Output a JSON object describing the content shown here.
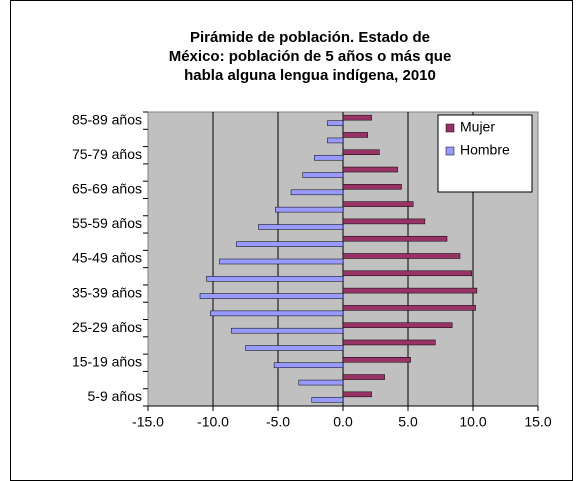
{
  "chart_data": {
    "type": "pyramid",
    "title": "Pirámide de población. Estado de México: población de 5 años o más que habla alguna lengua indígena, 2010",
    "categories": [
      "5-9 años",
      null,
      "15-19 años",
      null,
      "25-29 años",
      null,
      "35-39 años",
      null,
      "45-49 años",
      null,
      "55-59 años",
      null,
      "65-69 años",
      null,
      "75-79 años",
      null,
      "85-89 años"
    ],
    "series": [
      {
        "name": "Mujer",
        "color": "#993366",
        "values": [
          2.2,
          3.2,
          5.2,
          7.1,
          8.4,
          10.2,
          10.3,
          9.9,
          9.0,
          8.0,
          6.3,
          5.4,
          4.5,
          4.2,
          2.8,
          1.9,
          2.2
        ]
      },
      {
        "name": "Hombre",
        "color": "#9999ff",
        "values": [
          -2.4,
          -3.4,
          -5.3,
          -7.5,
          -8.6,
          -10.2,
          -11.0,
          -10.5,
          -9.5,
          -8.2,
          -6.5,
          -5.2,
          -4.0,
          -3.1,
          -2.2,
          -1.2,
          -1.2
        ]
      }
    ],
    "xlim": [
      -15,
      15
    ],
    "xticks": [
      {
        "value": -15,
        "label": "-15.0"
      },
      {
        "value": -10,
        "label": "-10.0"
      },
      {
        "value": -5,
        "label": "-5.0"
      },
      {
        "value": 0,
        "label": "0.0"
      },
      {
        "value": 5,
        "label": "5.0"
      },
      {
        "value": 10,
        "label": "10.0"
      },
      {
        "value": 15,
        "label": "15.0"
      }
    ],
    "grid": true,
    "legend": "upper right"
  }
}
